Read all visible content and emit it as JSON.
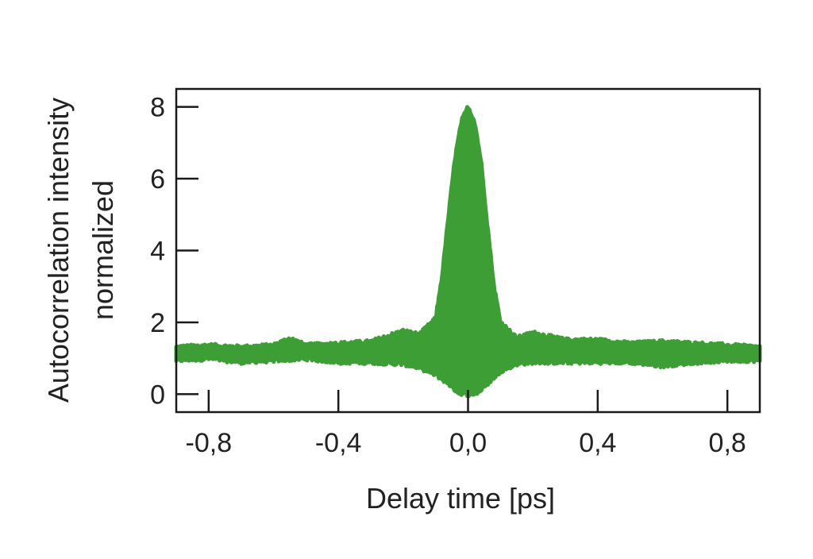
{
  "chart_data": {
    "type": "area",
    "xlabel": "Delay time [ps]",
    "ylabel_line1": "Autocorrelation intensity",
    "ylabel_line2": "normalized",
    "xlim": [
      -0.9,
      0.9
    ],
    "ylim": [
      -0.5,
      8.5
    ],
    "x_ticks": [
      {
        "value": -0.8,
        "label": "-0,8"
      },
      {
        "value": -0.4,
        "label": "-0,4"
      },
      {
        "value": 0.0,
        "label": "0,0"
      },
      {
        "value": 0.4,
        "label": "0,4"
      },
      {
        "value": 0.8,
        "label": "0,8"
      }
    ],
    "y_ticks": [
      {
        "value": 0,
        "label": "0"
      },
      {
        "value": 2,
        "label": "2"
      },
      {
        "value": 4,
        "label": "4"
      },
      {
        "value": 6,
        "label": "6"
      },
      {
        "value": 8,
        "label": "8"
      }
    ],
    "grid": false,
    "colors": {
      "envelope": "#3d9e35",
      "axis": "#1a1a1a"
    },
    "upper_envelope": {
      "x": [
        -0.9,
        -0.8,
        -0.7,
        -0.6,
        -0.55,
        -0.5,
        -0.4,
        -0.3,
        -0.25,
        -0.2,
        -0.15,
        -0.1,
        -0.08,
        -0.06,
        -0.04,
        -0.02,
        0.0,
        0.02,
        0.04,
        0.06,
        0.08,
        0.1,
        0.15,
        0.2,
        0.25,
        0.3,
        0.4,
        0.5,
        0.6,
        0.7,
        0.8,
        0.9
      ],
      "y": [
        1.3,
        1.35,
        1.3,
        1.35,
        1.55,
        1.35,
        1.4,
        1.45,
        1.6,
        1.75,
        1.65,
        2.1,
        3.3,
        5.0,
        6.6,
        7.6,
        8.0,
        7.6,
        6.5,
        4.7,
        3.0,
        2.0,
        1.55,
        1.7,
        1.6,
        1.5,
        1.5,
        1.4,
        1.45,
        1.4,
        1.35,
        1.3
      ]
    },
    "lower_envelope": {
      "x": [
        -0.9,
        -0.8,
        -0.7,
        -0.6,
        -0.5,
        -0.4,
        -0.3,
        -0.2,
        -0.15,
        -0.1,
        -0.06,
        -0.03,
        0.0,
        0.03,
        0.06,
        0.1,
        0.15,
        0.2,
        0.3,
        0.4,
        0.5,
        0.6,
        0.7,
        0.8,
        0.9
      ],
      "y": [
        0.95,
        1.0,
        0.9,
        0.95,
        1.0,
        0.9,
        0.9,
        0.85,
        0.75,
        0.55,
        0.3,
        0.05,
        0.0,
        0.05,
        0.3,
        0.65,
        0.85,
        0.9,
        0.9,
        0.9,
        0.9,
        0.8,
        0.9,
        0.95,
        0.95
      ]
    }
  }
}
